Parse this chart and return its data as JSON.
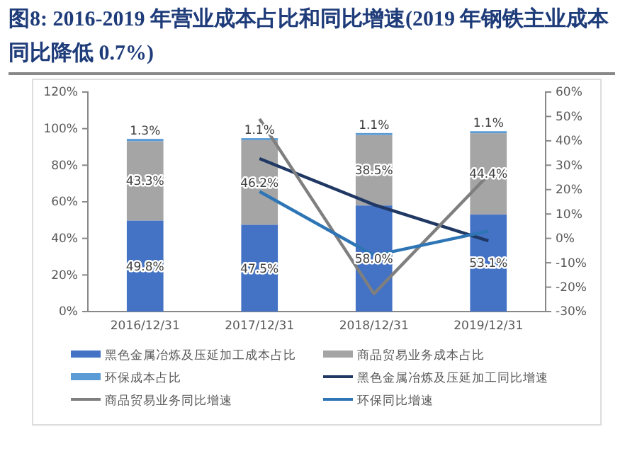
{
  "chart_data": {
    "type": "bar",
    "title": "图8:   2016-2019 年营业成本占比和同比增速(2019 年钢铁主业成本同比降低 0.7%)",
    "categories": [
      "2016/12/31",
      "2017/12/31",
      "2018/12/31",
      "2019/12/31"
    ],
    "stacked": true,
    "series": [
      {
        "name": "黑色金属冶炼及压延加工成本占比",
        "color": "#4472c4",
        "values": [
          49.8,
          47.5,
          58.0,
          53.1
        ],
        "value_labels": [
          "49.8%",
          "47.5%",
          "58.0%",
          "53.1%"
        ]
      },
      {
        "name": "商品贸易业务成本占比",
        "color": "#a5a5a5",
        "values": [
          43.3,
          46.2,
          38.5,
          44.4
        ],
        "value_labels": [
          "43.3%",
          "46.2%",
          "38.5%",
          "44.4%"
        ]
      },
      {
        "name": "环保成本占比",
        "color": "#5b9bd5",
        "values": [
          1.3,
          1.1,
          1.1,
          1.1
        ],
        "value_labels": [
          "1.3%",
          "1.1%",
          "1.1%",
          "1.1%"
        ]
      },
      {
        "name": "黑色金属冶炼及压延加工同比增速",
        "type": "line",
        "axis": "y2",
        "color": "#203864",
        "values": [
          null,
          32.7,
          13.8,
          -1.0
        ]
      },
      {
        "name": "商品贸易业务同比增速",
        "type": "line",
        "axis": "y2",
        "color": "#7f7f7f",
        "values": [
          null,
          49,
          -22.7,
          26
        ]
      },
      {
        "name": "环保同比增速",
        "type": "line",
        "axis": "y2",
        "color": "#2e75b6",
        "values": [
          null,
          19.2,
          -7,
          3
        ]
      }
    ],
    "ylim": [
      0,
      120
    ],
    "yticks": [
      {
        "value": 0,
        "label": "0%"
      },
      {
        "value": 20,
        "label": "20%"
      },
      {
        "value": 40,
        "label": "40%"
      },
      {
        "value": 60,
        "label": "60%"
      },
      {
        "value": 80,
        "label": "80%"
      },
      {
        "value": 100,
        "label": "100%"
      },
      {
        "value": 120,
        "label": "120%"
      }
    ],
    "y2lim": [
      -30,
      60
    ],
    "y2ticks": [
      {
        "value": -30,
        "label": "-30%"
      },
      {
        "value": -20,
        "label": "-20%"
      },
      {
        "value": -10,
        "label": "-10%"
      },
      {
        "value": 0,
        "label": "0%"
      },
      {
        "value": 10,
        "label": "10%"
      },
      {
        "value": 20,
        "label": "20%"
      },
      {
        "value": 30,
        "label": "30%"
      },
      {
        "value": 40,
        "label": "40%"
      },
      {
        "value": 50,
        "label": "50%"
      },
      {
        "value": 60,
        "label": "60%"
      }
    ],
    "legend": "bottom",
    "grid": false,
    "marker": "none",
    "line_style": "solid"
  }
}
